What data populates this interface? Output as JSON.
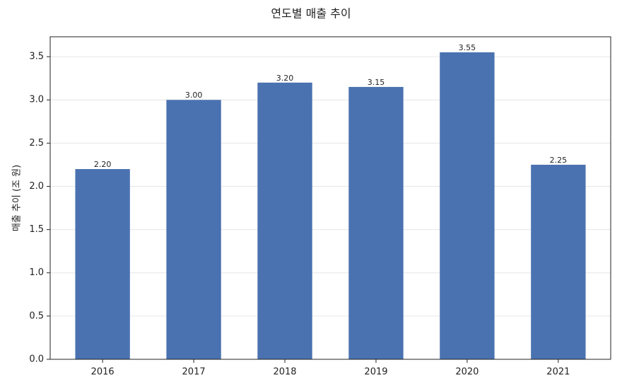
{
  "chart_data": {
    "type": "bar",
    "title": "연도별 매출 추이",
    "ylabel": "매출 추이 (조 원)",
    "categories": [
      "2016",
      "2017",
      "2018",
      "2019",
      "2020",
      "2021"
    ],
    "values": [
      2.2,
      3.0,
      3.2,
      3.15,
      3.55,
      2.25
    ],
    "value_labels": [
      "2.20",
      "3.00",
      "3.20",
      "3.15",
      "3.55",
      "2.25"
    ],
    "color": "#4a72b0",
    "ylim": [
      0,
      3.73
    ],
    "yticks": [
      {
        "value": 0,
        "label": "0.0"
      },
      {
        "value": 0.5,
        "label": "0.5"
      },
      {
        "value": 1,
        "label": "1.0"
      },
      {
        "value": 1.5,
        "label": "1.5"
      },
      {
        "value": 2,
        "label": "2.0"
      },
      {
        "value": 2.5,
        "label": "2.5"
      },
      {
        "value": 3,
        "label": "3.0"
      },
      {
        "value": 3.5,
        "label": "3.5"
      }
    ],
    "grid": true
  }
}
